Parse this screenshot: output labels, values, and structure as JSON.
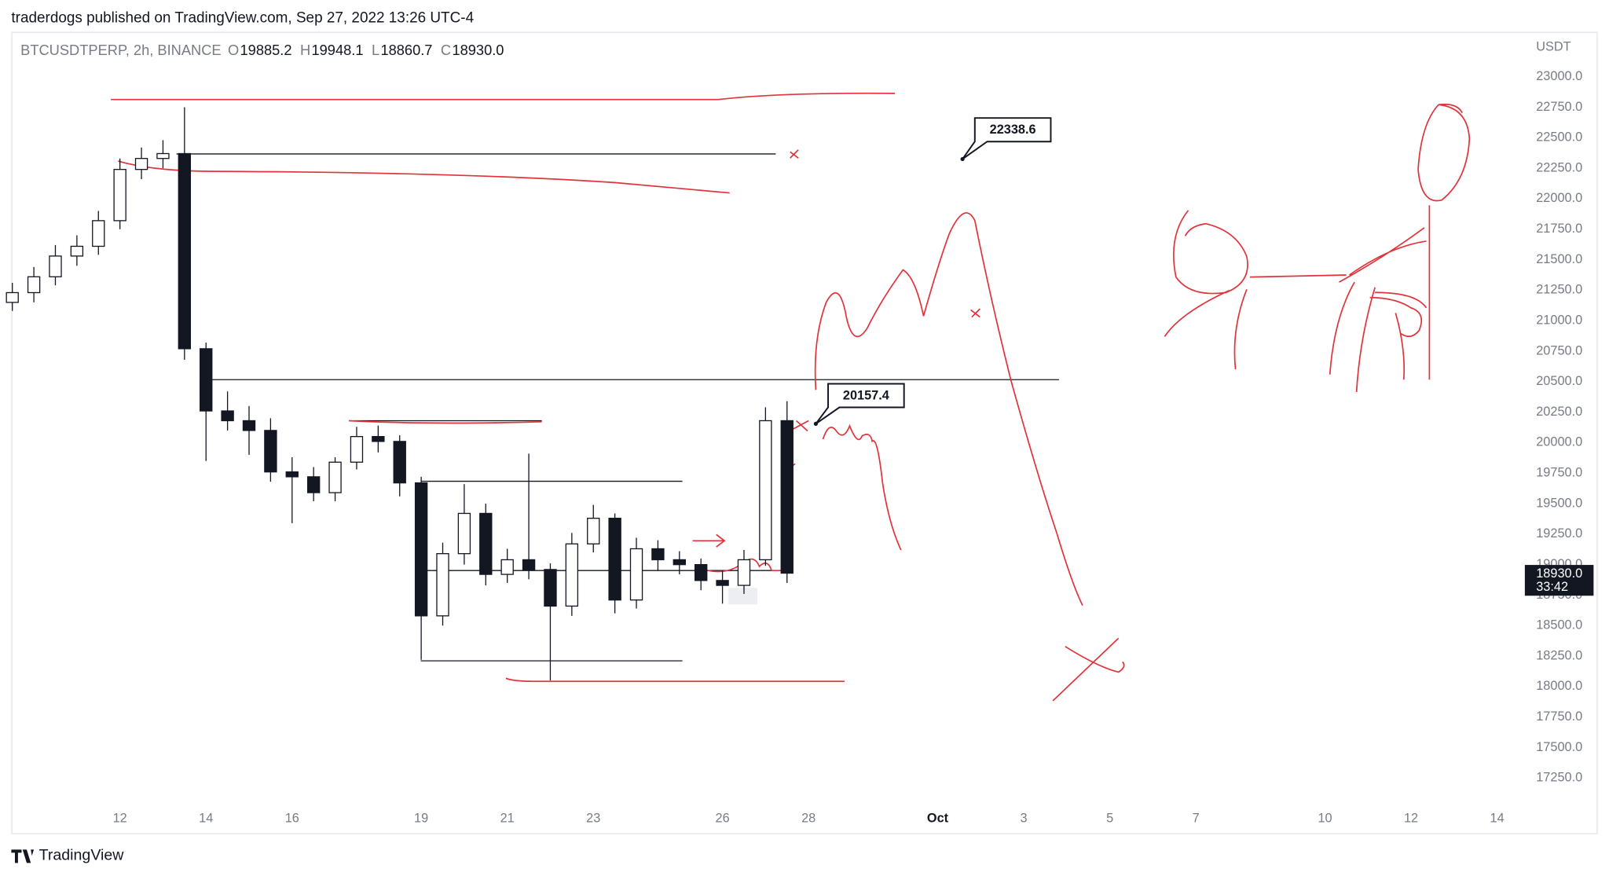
{
  "header": {
    "title": "traderdogs published on TradingView.com, Sep 27, 2022 13:26 UTC-4"
  },
  "footer": {
    "brand": "TradingView"
  },
  "chart_data": {
    "type": "candlestick",
    "symbol": "BTCUSDTPERP, 2h, BINANCE",
    "ohlc_legend": [
      {
        "key": "O",
        "value": "19885.2"
      },
      {
        "key": "H",
        "value": "19948.1"
      },
      {
        "key": "L",
        "value": "18860.7"
      },
      {
        "key": "C",
        "value": "18930.0"
      }
    ],
    "y_label": "USDT",
    "up_color": "#ffffff",
    "down_color": "#131722",
    "wick_color": "#131722",
    "grid": false,
    "x": [
      9.5,
      10,
      10.5,
      11,
      11.5,
      12,
      12.5,
      13,
      13.5,
      14,
      14.5,
      15,
      15.5,
      16,
      16.5,
      17,
      17.5,
      18,
      18.5,
      19,
      19.5,
      20,
      20.5,
      21,
      21.5,
      22,
      22.5,
      23,
      23.5,
      24,
      24.5,
      25,
      25.5,
      26,
      26.5,
      27,
      27.5
    ],
    "open": [
      21150,
      21230,
      21360,
      21530,
      21610,
      21820,
      22240,
      22330,
      22370,
      20770,
      20260,
      20180,
      20100,
      19760,
      19720,
      19590,
      19840,
      20050,
      20010,
      19670,
      18580,
      19090,
      19420,
      18920,
      19040,
      18960,
      18660,
      19170,
      19380,
      18710,
      19130,
      19040,
      19000,
      18870,
      18830,
      19040,
      20180
    ],
    "high": [
      21310,
      21440,
      21620,
      21700,
      21900,
      22330,
      22420,
      22480,
      22750,
      20820,
      20420,
      20300,
      20200,
      19880,
      19800,
      19880,
      20130,
      20140,
      20060,
      19720,
      19180,
      19660,
      19500,
      19130,
      19910,
      19010,
      19260,
      19490,
      19420,
      19220,
      19200,
      19110,
      19050,
      18950,
      19120,
      20290,
      20340
    ],
    "low": [
      21080,
      21150,
      21290,
      21450,
      21540,
      21750,
      22160,
      22250,
      20680,
      19850,
      20100,
      19900,
      19680,
      19340,
      19520,
      19520,
      19780,
      19920,
      19560,
      18220,
      18500,
      19000,
      18830,
      18850,
      18880,
      18050,
      18580,
      19100,
      18600,
      18640,
      18950,
      18920,
      18790,
      18680,
      18760,
      18990,
      18850
    ],
    "close": [
      21230,
      21360,
      21530,
      21610,
      21820,
      22240,
      22330,
      22370,
      20770,
      20260,
      20180,
      20100,
      19760,
      19720,
      19590,
      19840,
      20050,
      20010,
      19670,
      18580,
      19090,
      19420,
      18920,
      19040,
      18960,
      18660,
      19170,
      19380,
      18710,
      19130,
      19040,
      19000,
      18870,
      18830,
      19040,
      20180,
      18930
    ],
    "xlim": [
      9.5,
      44.5
    ],
    "xticks": [
      12,
      14,
      16,
      19,
      21,
      23,
      26,
      28,
      {
        "value": 31,
        "label": "Oct"
      },
      {
        "value": 33,
        "label": "3"
      },
      {
        "value": 35,
        "label": "5"
      },
      {
        "value": 37,
        "label": "7"
      },
      {
        "value": 40,
        "label": "10"
      },
      {
        "value": 42,
        "label": "12"
      },
      {
        "value": 44,
        "label": "14"
      }
    ],
    "ylim": [
      17025,
      23360
    ],
    "yticks": [
      {
        "value": 17250,
        "label": "17250.0"
      },
      {
        "value": 17500,
        "label": "17500.0"
      },
      {
        "value": 17750,
        "label": "17750.0"
      },
      {
        "value": 18000,
        "label": "18000.0"
      },
      {
        "value": 18250,
        "label": "18250.0"
      },
      {
        "value": 18500,
        "label": "18500.0"
      },
      {
        "value": 18750,
        "label": "18750.0"
      },
      {
        "value": 19000,
        "label": "19000.0"
      },
      {
        "value": 19250,
        "label": "19250.0"
      },
      {
        "value": 19500,
        "label": "19500.0"
      },
      {
        "value": 19750,
        "label": "19750.0"
      },
      {
        "value": 20000,
        "label": "20000.0"
      },
      {
        "value": 20250,
        "label": "20250.0"
      },
      {
        "value": 20500,
        "label": "20500.0"
      },
      {
        "value": 20750,
        "label": "20750.0"
      },
      {
        "value": 21000,
        "label": "21000.0"
      },
      {
        "value": 21250,
        "label": "21250.0"
      },
      {
        "value": 21500,
        "label": "21500.0"
      },
      {
        "value": 21750,
        "label": "21750.0"
      },
      {
        "value": 22000,
        "label": "22000.0"
      },
      {
        "value": 22250,
        "label": "22250.0"
      },
      {
        "value": 22500,
        "label": "22500.0"
      },
      {
        "value": 22750,
        "label": "22750.0"
      },
      {
        "value": 23000,
        "label": "23000.0"
      }
    ],
    "current_price": {
      "value": 18930,
      "label": "18930.0"
    },
    "countdown": "33:42",
    "annotations": [
      "22338.6",
      "20157.4"
    ]
  }
}
